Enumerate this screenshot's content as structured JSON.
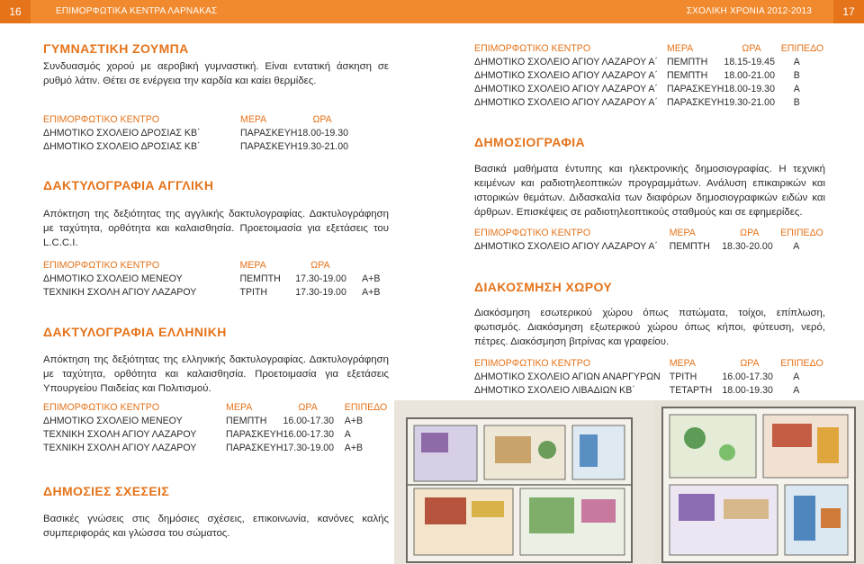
{
  "header": {
    "page_left": "16",
    "title": "ΕΠΙΜΟΡΦΩΤΙΚΑ ΚΕΝΤΡΑ ΛΑΡΝΑΚΑΣ",
    "school_year": "ΣΧΟΛΙΚΗ ΧΡΟΝΙΑ 2012-2013",
    "page_right": "17"
  },
  "gymnastiki": {
    "title": "ΓΥΜΝΑΣΤΙΚΗ ΖΟΥΜΠΑ",
    "description": "Συνδυασμός χορού με αεροβική γυμναστική. Είναι εντατική άσκηση σε ρυθμό λάτιν. Θέτει σε ενέργεια την καρδία και καίει θερμίδες.",
    "headers": [
      "ΕΠΙΜΟΡΦΩΤΙΚΟ ΚΕΝΤΡΟ",
      "ΜΕΡΑ",
      "ΩΡΑ"
    ],
    "rows": [
      [
        "ΔΗΜΟΤΙΚΟ ΣΧΟΛΕΙΟ ΔΡΟΣΙΑΣ ΚΒ΄",
        "ΠΑΡΑΣΚΕΥΗ",
        "18.00-19.30"
      ],
      [
        "ΔΗΜΟΤΙΚΟ ΣΧΟΛΕΙΟ ΔΡΟΣΙΑΣ ΚΒ΄",
        "ΠΑΡΑΣΚΕΥΗ",
        "19.30-21.00"
      ]
    ]
  },
  "daktylo_agl": {
    "title": "ΔΑΚΤΥΛΟΓΡΑΦΙΑ ΑΓΓΛΙΚΗ",
    "description": "Απόκτηση της δεξιότητας της αγγλικής δακτυλογραφίας. Δακτυλογράφηση με ταχύτητα, ορθότητα και καλαισθησία. Προετοιμασία για εξετάσεις του L.C.C.I.",
    "headers": [
      "ΕΠΙΜΟΡΦΩΤΙΚΟ ΚΕΝΤΡΟ",
      "ΜΕΡΑ",
      "ΩΡΑ",
      ""
    ],
    "rows": [
      [
        "ΔΗΜΟΤΙΚΟ ΣΧΟΛΕΙΟ ΜΕΝΕΟΥ",
        "ΠΕΜΠΤΗ",
        "17.30-19.00",
        "Α+Β"
      ],
      [
        "ΤΕΧΝΙΚΗ ΣΧΟΛΗ ΑΓΙΟΥ ΛΑΖΑΡΟΥ",
        "ΤΡΙΤΗ",
        "17.30-19.00",
        "Α+Β"
      ]
    ]
  },
  "daktylo_ell": {
    "title": "ΔΑΚΤΥΛΟΓΡΑΦΙΑ ΕΛΛΗΝΙΚΗ",
    "description": "Απόκτηση της δεξιότητας της ελληνικής δακτυλογραφίας. Δακτυλογράφηση με ταχύτητα, ορθότητα και καλαισθησία. Προετοιμασία για εξετάσεις Υπουργείου Παιδείας και Πολιτισμού.",
    "headers": [
      "ΕΠΙΜΟΡΦΩΤΙΚΟ ΚΕΝΤΡΟ",
      "ΜΕΡΑ",
      "ΩΡΑ",
      "ΕΠΙΠΕΔΟ"
    ],
    "rows": [
      [
        "ΔΗΜΟΤΙΚΟ ΣΧΟΛΕΙΟ ΜΕΝΕΟΥ",
        "ΠΕΜΠΤΗ",
        "16.00-17.30",
        "Α+Β"
      ],
      [
        "ΤΕΧΝΙΚΗ ΣΧΟΛΗ ΑΓΙΟΥ ΛΑΖΑΡΟΥ",
        "ΠΑΡΑΣΚΕΥΗ",
        "16.00-17.30",
        "Α"
      ],
      [
        "ΤΕΧΝΙΚΗ ΣΧΟΛΗ ΑΓΙΟΥ ΛΑΖΑΡΟΥ",
        "ΠΑΡΑΣΚΕΥΗ",
        "17.30-19.00",
        "Α+Β"
      ]
    ]
  },
  "dimosies": {
    "title": "ΔΗΜΟΣΙΕΣ ΣΧΕΣΕΙΣ",
    "description": "Βασικές γνώσεις στις δημόσιες σχέσεις, επικοινωνία, κανόνες καλής συμπεριφοράς και γλώσσα του σώματος."
  },
  "right_top": {
    "headers": [
      "ΕΠΙΜΟΡΦΩΤΙΚΟ ΚΕΝΤΡΟ",
      "ΜΕΡΑ",
      "ΩΡΑ",
      "ΕΠΙΠΕΔΟ"
    ],
    "rows": [
      [
        "ΔΗΜΟΤΙΚΟ ΣΧΟΛΕΙΟ ΑΓΙΟΥ ΛΑΖΑΡΟΥ Α΄",
        "ΠΕΜΠΤΗ",
        "18.15-19.45",
        "Α"
      ],
      [
        "ΔΗΜΟΤΙΚΟ ΣΧΟΛΕΙΟ ΑΓΙΟΥ ΛΑΖΑΡΟΥ Α΄",
        "ΠΕΜΠΤΗ",
        "18.00-21.00",
        "Β"
      ],
      [
        "ΔΗΜΟΤΙΚΟ ΣΧΟΛΕΙΟ ΑΓΙΟΥ ΛΑΖΑΡΟΥ Α΄",
        "ΠΑΡΑΣΚΕΥΗ",
        "18.00-19.30",
        "Α"
      ],
      [
        "ΔΗΜΟΤΙΚΟ ΣΧΟΛΕΙΟ ΑΓΙΟΥ ΛΑΖΑΡΟΥ Α΄",
        "ΠΑΡΑΣΚΕΥΗ",
        "19.30-21.00",
        "Β"
      ]
    ]
  },
  "dimosiografia": {
    "title": "ΔΗΜΟΣΙΟΓΡΑΦΙΑ",
    "description": "Βασικά μαθήματα έντυπης και ηλεκτρονικής δημοσιογραφίας. Η τεχνική κειμένων και ραδιοτηλεοπτικών προγραμμάτων. Ανάλυση επικαιρικών και ιστορικών θεμάτων. Διδασκαλία των διαφόρων δημοσιογραφικών ειδών και άρθρων. Επισκέψεις σε ραδιοτηλεοπτικούς σταθμούς και σε εφημερίδες.",
    "headers": [
      "ΕΠΙΜΟΡΦΩΤΙΚΟ ΚΕΝΤΡΟ",
      "ΜΕΡΑ",
      "ΩΡΑ",
      "ΕΠΙΠΕΔΟ"
    ],
    "rows": [
      [
        "ΔΗΜΟΤΙΚΟ ΣΧΟΛΕΙΟ ΑΓΙΟΥ ΛΑΖΑΡΟΥ Α΄",
        "ΠΕΜΠΤΗ",
        "18.30-20.00",
        "Α"
      ]
    ]
  },
  "diakosmisi": {
    "title": "ΔΙΑΚΟΣΜΗΣΗ ΧΩΡΟΥ",
    "description": "Διακόσμηση εσωτερικού χώρου όπως πατώματα, τοίχοι, επίπλωση, φωτισμός. Διακόσμηση εξωτερικού χώρου όπως κήποι, φύτευση, νερό, πέτρες. Διακόσμηση βιτρίνας και γραφείου.",
    "headers": [
      "ΕΠΙΜΟΡΦΩΤΙΚΟ ΚΕΝΤΡΟ",
      "ΜΕΡΑ",
      "ΩΡΑ",
      "ΕΠΙΠΕΔΟ"
    ],
    "rows": [
      [
        "ΔΗΜΟΤΙΚΟ ΣΧΟΛΕΙΟ ΑΓΙΩΝ ΑΝΑΡΓΥΡΩΝ",
        "ΤΡΙΤΗ",
        "16.00-17.30",
        "Α"
      ],
      [
        "ΔΗΜΟΤΙΚΟ ΣΧΟΛΕΙΟ ΛΙΒΑΔΙΩΝ ΚΒ΄",
        "ΤΕΤΑΡΤΗ",
        "18.00-19.30",
        "Α"
      ]
    ]
  },
  "colors": {
    "accent": "#e5731a",
    "bar": "#f18a2e"
  }
}
